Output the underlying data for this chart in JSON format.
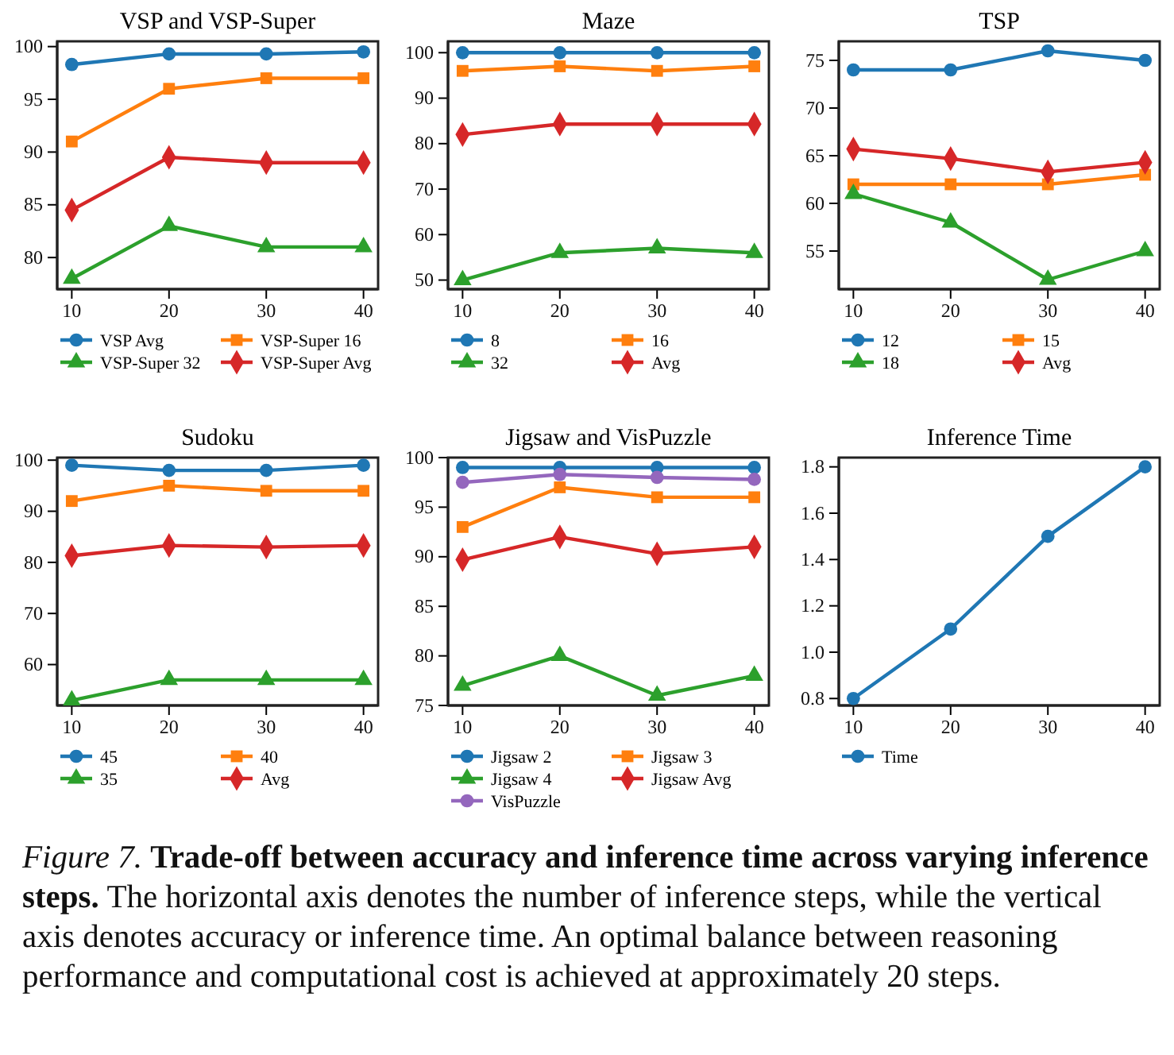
{
  "chart_data": [
    {
      "type": "line",
      "title": "VSP and VSP-Super",
      "x": [
        10,
        20,
        30,
        40
      ],
      "xlim": [
        8.5,
        41.5
      ],
      "xticks": [
        10,
        20,
        30,
        40
      ],
      "ylim": [
        77,
        100.5
      ],
      "yticks": [
        80,
        85,
        90,
        95,
        100
      ],
      "legend": "bottom",
      "series": [
        {
          "name": "VSP Avg",
          "color": "#1f77b4",
          "marker": "circle",
          "values": [
            98.3,
            99.3,
            99.3,
            99.5
          ]
        },
        {
          "name": "VSP-Super 16",
          "color": "#ff7f0e",
          "marker": "square",
          "values": [
            91,
            96,
            97,
            97
          ]
        },
        {
          "name": "VSP-Super 32",
          "color": "#2ca02c",
          "marker": "triangle",
          "values": [
            78,
            83,
            81,
            81
          ]
        },
        {
          "name": "VSP-Super Avg",
          "color": "#d62728",
          "marker": "diamond",
          "values": [
            84.5,
            89.5,
            89,
            89
          ]
        }
      ]
    },
    {
      "type": "line",
      "title": "Maze",
      "x": [
        10,
        20,
        30,
        40
      ],
      "xlim": [
        8.5,
        41.5
      ],
      "xticks": [
        10,
        20,
        30,
        40
      ],
      "ylim": [
        48,
        102.5
      ],
      "yticks": [
        50,
        60,
        70,
        80,
        90,
        100
      ],
      "legend": "bottom",
      "series": [
        {
          "name": "8",
          "color": "#1f77b4",
          "marker": "circle",
          "values": [
            100,
            100,
            100,
            100
          ]
        },
        {
          "name": "16",
          "color": "#ff7f0e",
          "marker": "square",
          "values": [
            96,
            97,
            96,
            97
          ]
        },
        {
          "name": "32",
          "color": "#2ca02c",
          "marker": "triangle",
          "values": [
            50,
            56,
            57,
            56
          ]
        },
        {
          "name": "Avg",
          "color": "#d62728",
          "marker": "diamond",
          "values": [
            82,
            84.3,
            84.3,
            84.3
          ]
        }
      ]
    },
    {
      "type": "line",
      "title": "TSP",
      "x": [
        10,
        20,
        30,
        40
      ],
      "xlim": [
        8.5,
        41.5
      ],
      "xticks": [
        10,
        20,
        30,
        40
      ],
      "ylim": [
        51,
        77
      ],
      "yticks": [
        55,
        60,
        65,
        70,
        75
      ],
      "legend": "bottom",
      "series": [
        {
          "name": "12",
          "color": "#1f77b4",
          "marker": "circle",
          "values": [
            74,
            74,
            76,
            75
          ]
        },
        {
          "name": "15",
          "color": "#ff7f0e",
          "marker": "square",
          "values": [
            62,
            62,
            62,
            63
          ]
        },
        {
          "name": "18",
          "color": "#2ca02c",
          "marker": "triangle",
          "values": [
            61,
            58,
            52,
            55
          ]
        },
        {
          "name": "Avg",
          "color": "#d62728",
          "marker": "diamond",
          "values": [
            65.7,
            64.7,
            63.3,
            64.3
          ]
        }
      ]
    },
    {
      "type": "line",
      "title": "Sudoku",
      "x": [
        10,
        20,
        30,
        40
      ],
      "xlim": [
        8.5,
        41.5
      ],
      "xticks": [
        10,
        20,
        30,
        40
      ],
      "ylim": [
        52,
        100.5
      ],
      "yticks": [
        60,
        70,
        80,
        90,
        100
      ],
      "legend": "bottom",
      "series": [
        {
          "name": "45",
          "color": "#1f77b4",
          "marker": "circle",
          "values": [
            99,
            98,
            98,
            99
          ]
        },
        {
          "name": "40",
          "color": "#ff7f0e",
          "marker": "square",
          "values": [
            92,
            95,
            94,
            94
          ]
        },
        {
          "name": "35",
          "color": "#2ca02c",
          "marker": "triangle",
          "values": [
            53,
            57,
            57,
            57
          ]
        },
        {
          "name": "Avg",
          "color": "#d62728",
          "marker": "diamond",
          "values": [
            81.3,
            83.3,
            83,
            83.3
          ]
        }
      ]
    },
    {
      "type": "line",
      "title": "Jigsaw and VisPuzzle",
      "x": [
        10,
        20,
        30,
        40
      ],
      "xlim": [
        8.5,
        41.5
      ],
      "xticks": [
        10,
        20,
        30,
        40
      ],
      "ylim": [
        75,
        100
      ],
      "yticks": [
        75,
        80,
        85,
        90,
        95,
        100
      ],
      "legend": "bottom",
      "series": [
        {
          "name": "Jigsaw 2",
          "color": "#1f77b4",
          "marker": "circle",
          "values": [
            99,
            99,
            99,
            99
          ]
        },
        {
          "name": "Jigsaw 3",
          "color": "#ff7f0e",
          "marker": "square",
          "values": [
            93,
            97,
            96,
            96
          ]
        },
        {
          "name": "Jigsaw 4",
          "color": "#2ca02c",
          "marker": "triangle",
          "values": [
            77,
            80,
            76,
            78
          ]
        },
        {
          "name": "Jigsaw Avg",
          "color": "#d62728",
          "marker": "diamond",
          "values": [
            89.7,
            92,
            90.3,
            91
          ]
        },
        {
          "name": "VisPuzzle",
          "color": "#9467bd",
          "marker": "circle",
          "values": [
            97.5,
            98.3,
            98,
            97.8
          ]
        }
      ]
    },
    {
      "type": "line",
      "title": "Inference Time",
      "x": [
        10,
        20,
        30,
        40
      ],
      "xlim": [
        8.5,
        41.5
      ],
      "xticks": [
        10,
        20,
        30,
        40
      ],
      "ylim": [
        0.77,
        1.84
      ],
      "yticks": [
        0.8,
        {
          "value": 1.0,
          "label": "1.0"
        },
        1.2,
        1.4,
        1.6,
        1.8
      ],
      "legend": "bottom",
      "series": [
        {
          "name": "Time",
          "color": "#1f77b4",
          "marker": "circle",
          "values": [
            0.8,
            1.1,
            1.5,
            1.8
          ]
        }
      ],
      "annotations": [
        "Figure 7.",
        "Trade-off between accuracy and inference time across varying inference steps.",
        "The horizontal axis denotes the number of inference steps, while the vertical axis denotes accuracy or inference time. An optimal balance between reasoning performance and computational cost is achieved at approximately 20 steps."
      ]
    }
  ]
}
